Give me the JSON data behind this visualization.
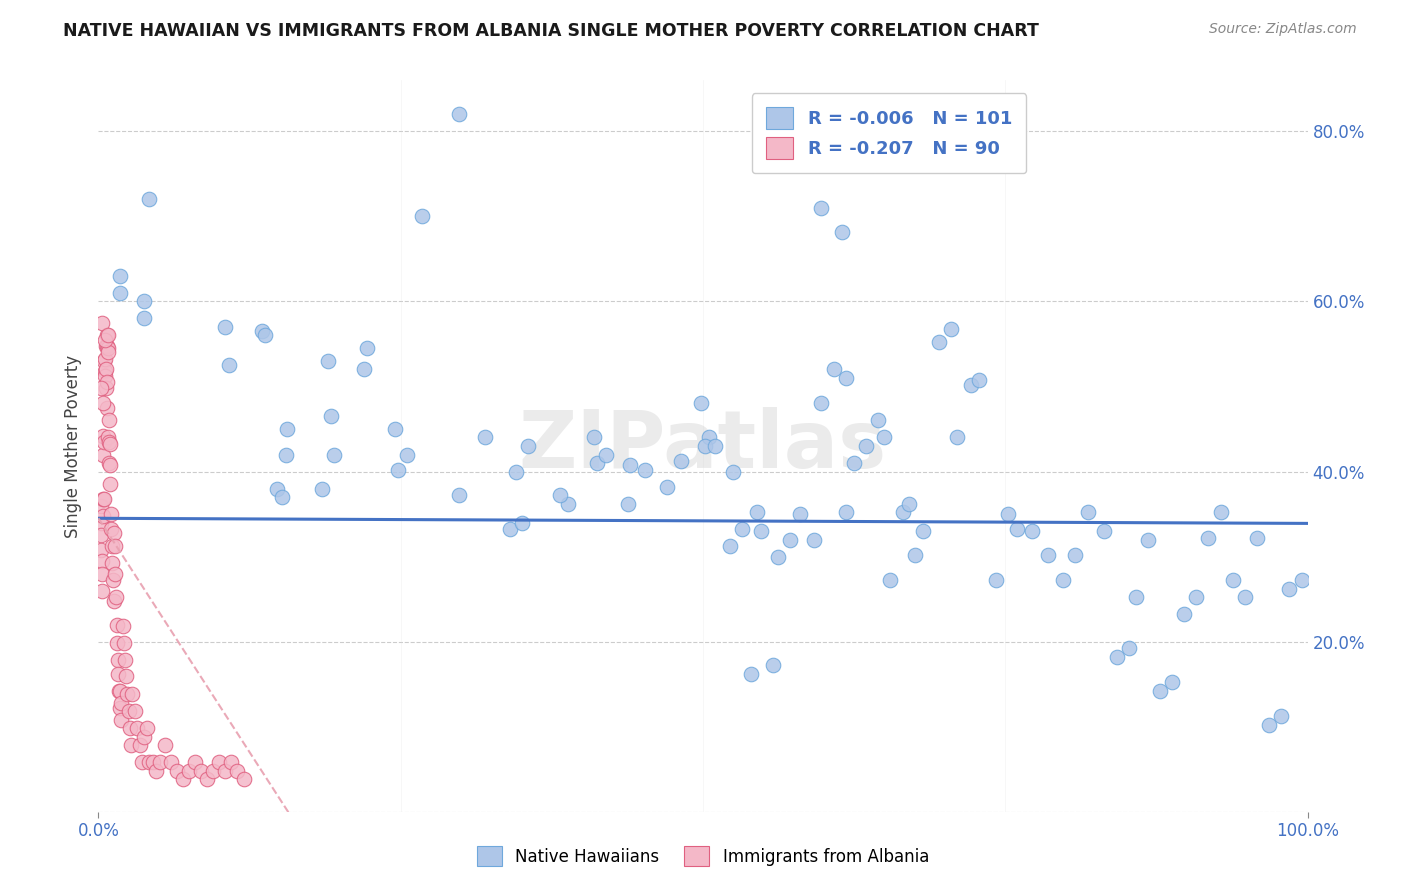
{
  "title": "NATIVE HAWAIIAN VS IMMIGRANTS FROM ALBANIA SINGLE MOTHER POVERTY CORRELATION CHART",
  "source": "Source: ZipAtlas.com",
  "ylabel": "Single Mother Poverty",
  "legend_blue_label": "Native Hawaiians",
  "legend_pink_label": "Immigrants from Albania",
  "xlim": [
    0.0,
    1.0
  ],
  "ylim": [
    0.0,
    0.86
  ],
  "yticks": [
    0.0,
    0.2,
    0.4,
    0.6,
    0.8
  ],
  "ytick_labels_right": [
    "",
    "20.0%",
    "40.0%",
    "60.0%",
    "80.0%"
  ],
  "xtick_left": "0.0%",
  "xtick_right": "100.0%",
  "grid_color": "#cccccc",
  "blue_color": "#aec6e8",
  "blue_edge": "#6fa8dc",
  "pink_color": "#f4b8c8",
  "pink_edge": "#e06080",
  "trendline_blue_color": "#4472c4",
  "trendline_pink_color": "#e8a0b0",
  "trendline_blue_intercept": 0.345,
  "trendline_blue_slope": -0.006,
  "trendline_pink_intercept": 0.345,
  "trendline_pink_slope": -2.2,
  "watermark": "ZIPatlas",
  "legend_r_blue": "-0.006",
  "legend_n_blue": "101",
  "legend_r_pink": "-0.207",
  "legend_n_pink": "90",
  "blue_x": [
    0.298,
    0.042,
    0.268,
    0.598,
    0.018,
    0.018,
    0.038,
    0.038,
    0.105,
    0.135,
    0.138,
    0.108,
    0.156,
    0.22,
    0.19,
    0.148,
    0.152,
    0.192,
    0.222,
    0.155,
    0.195,
    0.185,
    0.245,
    0.248,
    0.255,
    0.32,
    0.298,
    0.345,
    0.34,
    0.35,
    0.355,
    0.388,
    0.41,
    0.382,
    0.412,
    0.42,
    0.44,
    0.438,
    0.452,
    0.47,
    0.482,
    0.505,
    0.502,
    0.51,
    0.522,
    0.525,
    0.532,
    0.545,
    0.548,
    0.562,
    0.572,
    0.58,
    0.592,
    0.598,
    0.608,
    0.618,
    0.625,
    0.635,
    0.645,
    0.65,
    0.655,
    0.665,
    0.67,
    0.675,
    0.682,
    0.695,
    0.705,
    0.71,
    0.722,
    0.728,
    0.742,
    0.752,
    0.76,
    0.772,
    0.785,
    0.798,
    0.808,
    0.818,
    0.832,
    0.842,
    0.852,
    0.858,
    0.868,
    0.878,
    0.888,
    0.898,
    0.908,
    0.918,
    0.928,
    0.938,
    0.948,
    0.958,
    0.968,
    0.978,
    0.985,
    0.995,
    0.54,
    0.558,
    0.615,
    0.498,
    0.618
  ],
  "blue_y": [
    0.82,
    0.72,
    0.7,
    0.71,
    0.63,
    0.61,
    0.58,
    0.6,
    0.57,
    0.565,
    0.56,
    0.525,
    0.45,
    0.52,
    0.53,
    0.38,
    0.37,
    0.465,
    0.545,
    0.42,
    0.42,
    0.38,
    0.45,
    0.402,
    0.42,
    0.44,
    0.372,
    0.4,
    0.332,
    0.34,
    0.43,
    0.362,
    0.44,
    0.372,
    0.41,
    0.42,
    0.408,
    0.362,
    0.402,
    0.382,
    0.412,
    0.44,
    0.43,
    0.43,
    0.312,
    0.4,
    0.332,
    0.352,
    0.33,
    0.3,
    0.32,
    0.35,
    0.32,
    0.48,
    0.52,
    0.352,
    0.41,
    0.43,
    0.46,
    0.44,
    0.272,
    0.352,
    0.362,
    0.302,
    0.33,
    0.552,
    0.568,
    0.44,
    0.502,
    0.508,
    0.272,
    0.35,
    0.332,
    0.33,
    0.302,
    0.272,
    0.302,
    0.352,
    0.33,
    0.182,
    0.192,
    0.252,
    0.32,
    0.142,
    0.152,
    0.232,
    0.252,
    0.322,
    0.352,
    0.272,
    0.252,
    0.322,
    0.102,
    0.112,
    0.262,
    0.272,
    0.162,
    0.172,
    0.682,
    0.48,
    0.51
  ],
  "pink_x": [
    0.0018,
    0.002,
    0.0022,
    0.0025,
    0.0028,
    0.003,
    0.0032,
    0.0035,
    0.0038,
    0.004,
    0.0042,
    0.0045,
    0.0048,
    0.005,
    0.0052,
    0.0055,
    0.0058,
    0.006,
    0.0062,
    0.0065,
    0.0068,
    0.007,
    0.0072,
    0.0075,
    0.0078,
    0.008,
    0.0082,
    0.0085,
    0.0088,
    0.009,
    0.0092,
    0.0095,
    0.0098,
    0.01,
    0.0105,
    0.011,
    0.0115,
    0.012,
    0.0125,
    0.013,
    0.0135,
    0.014,
    0.0145,
    0.015,
    0.0155,
    0.016,
    0.0165,
    0.017,
    0.0175,
    0.018,
    0.0185,
    0.019,
    0.02,
    0.021,
    0.022,
    0.023,
    0.024,
    0.025,
    0.026,
    0.027,
    0.028,
    0.03,
    0.032,
    0.034,
    0.036,
    0.038,
    0.04,
    0.042,
    0.045,
    0.048,
    0.051,
    0.055,
    0.06,
    0.065,
    0.07,
    0.075,
    0.08,
    0.085,
    0.09,
    0.095,
    0.1,
    0.105,
    0.11,
    0.115,
    0.12,
    0.003,
    0.0055,
    0.008,
    0.0022,
    0.0042
  ],
  "pink_y": [
    0.36,
    0.34,
    0.325,
    0.308,
    0.295,
    0.28,
    0.26,
    0.442,
    0.42,
    0.368,
    0.348,
    0.368,
    0.435,
    0.53,
    0.518,
    0.532,
    0.512,
    0.548,
    0.52,
    0.498,
    0.475,
    0.56,
    0.548,
    0.505,
    0.545,
    0.54,
    0.44,
    0.46,
    0.435,
    0.41,
    0.385,
    0.432,
    0.408,
    0.35,
    0.332,
    0.312,
    0.292,
    0.272,
    0.248,
    0.328,
    0.312,
    0.28,
    0.252,
    0.22,
    0.198,
    0.178,
    0.162,
    0.142,
    0.122,
    0.142,
    0.128,
    0.108,
    0.218,
    0.198,
    0.178,
    0.16,
    0.138,
    0.118,
    0.098,
    0.078,
    0.138,
    0.118,
    0.098,
    0.078,
    0.058,
    0.088,
    0.098,
    0.058,
    0.058,
    0.048,
    0.058,
    0.078,
    0.058,
    0.048,
    0.038,
    0.048,
    0.058,
    0.048,
    0.038,
    0.048,
    0.058,
    0.048,
    0.058,
    0.048,
    0.038,
    0.575,
    0.555,
    0.56,
    0.498,
    0.48
  ]
}
